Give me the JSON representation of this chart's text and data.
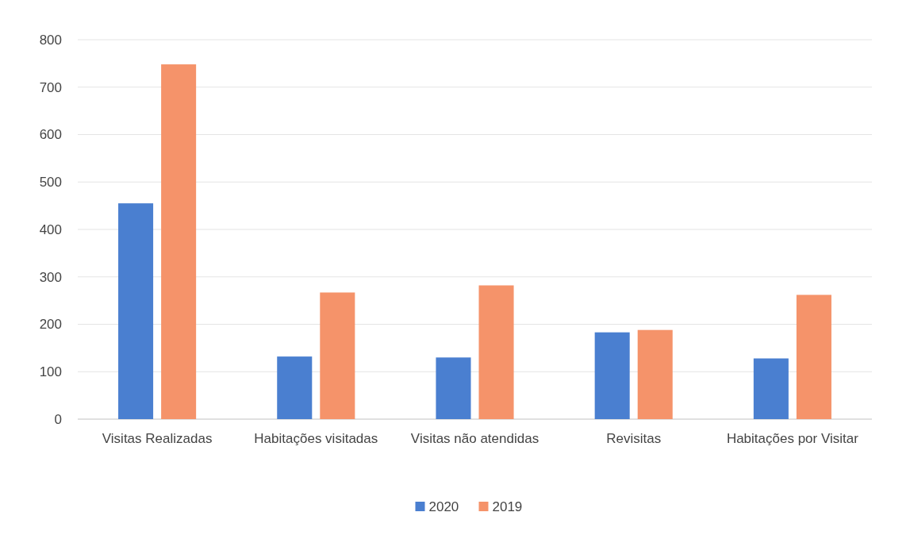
{
  "chart_data": {
    "type": "bar",
    "categories": [
      "Visitas Realizadas",
      "Habitações visitadas",
      "Visitas não atendidas",
      "Revisitas",
      "Habitações por Visitar"
    ],
    "series": [
      {
        "name": "2020",
        "color": "#4a7fd0",
        "values": [
          455,
          132,
          130,
          183,
          128
        ]
      },
      {
        "name": "2019",
        "color": "#f5936a",
        "values": [
          748,
          267,
          282,
          188,
          262
        ]
      }
    ],
    "ylim": [
      0,
      800
    ],
    "yticks": [
      0,
      100,
      200,
      300,
      400,
      500,
      600,
      700,
      800
    ],
    "grid": "y",
    "legend": "bottom"
  }
}
